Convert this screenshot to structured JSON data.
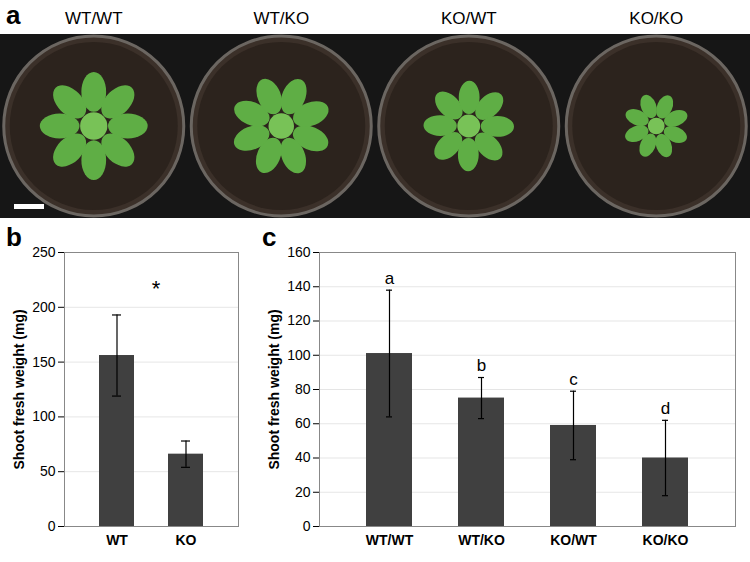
{
  "photo": {
    "panel": "a",
    "labels": [
      "WT/WT",
      "WT/KO",
      "KO/WT",
      "KO/KO"
    ]
  },
  "chart_data": [
    {
      "type": "bar",
      "title": "b",
      "categories": [
        "WT",
        "KO"
      ],
      "values": [
        156,
        66
      ],
      "errors": [
        37,
        12
      ],
      "color": "#404040",
      "ylabel": "Shoot fresh weight (mg)",
      "ylim": [
        0,
        250
      ],
      "yticks": [
        0,
        50,
        100,
        150,
        200,
        250
      ],
      "grid": true,
      "annotations": [
        {
          "text": "*",
          "between": [
            "WT",
            "KO"
          ]
        }
      ]
    },
    {
      "type": "bar",
      "title": "c",
      "categories": [
        "WT/WT",
        "WT/KO",
        "KO/WT",
        "KO/KO"
      ],
      "values": [
        101,
        75,
        59,
        40
      ],
      "errors": [
        37,
        12,
        20,
        22
      ],
      "color": "#404040",
      "ylabel": "Shoot fresh weight (mg)",
      "ylim": [
        0,
        160
      ],
      "yticks": [
        0,
        20,
        40,
        60,
        80,
        100,
        120,
        140,
        160
      ],
      "grid": true,
      "annotations": [
        {
          "text": "a",
          "category": "WT/WT"
        },
        {
          "text": "b",
          "category": "WT/KO"
        },
        {
          "text": "c",
          "category": "KO/WT"
        },
        {
          "text": "d",
          "category": "KO/KO"
        }
      ]
    }
  ]
}
